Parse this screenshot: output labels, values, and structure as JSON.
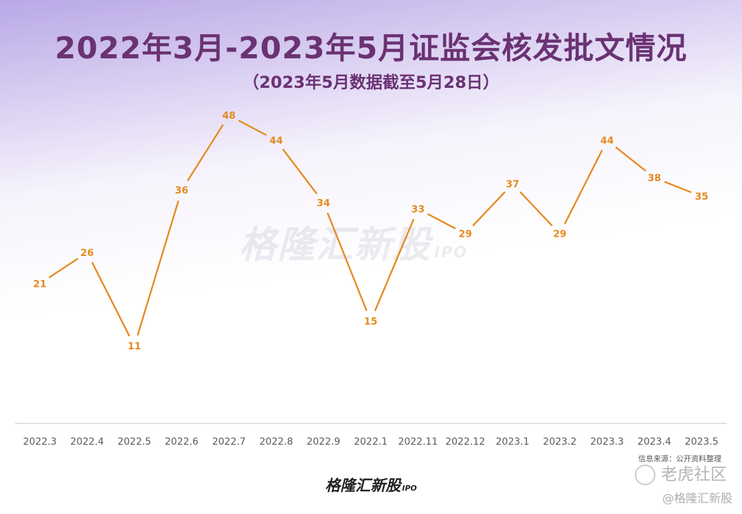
{
  "chart_data": {
    "type": "line",
    "title": "2022年3月-2023年5月证监会核发批文情况",
    "subtitle": "（2023年5月数据截至5月28日）",
    "categories": [
      "2022.3",
      "2022.4",
      "2022.5",
      "2022.6",
      "2022.7",
      "2022.8",
      "2022.9",
      "2022.1",
      "2022.11",
      "2022.12",
      "2023.1",
      "2023.2",
      "2023.3",
      "2023.4",
      "2023.5"
    ],
    "series": [
      {
        "values": [
          21,
          26,
          11,
          36,
          48,
          44,
          34,
          15,
          33,
          29,
          37,
          29,
          44,
          38,
          35
        ]
      }
    ],
    "ylim": [
      0,
      52
    ],
    "grid": false,
    "line_color": "#e58a1f",
    "label_color": "#e58a1f"
  },
  "watermark": {
    "text": "格隆汇新股",
    "suffix": "IPO"
  },
  "source": "信息来源：公开资料整理",
  "bottom_logo": {
    "text": "格隆汇新股",
    "suffix": "IPO"
  },
  "community": "老虎社区",
  "handle": "@格隆汇新股"
}
